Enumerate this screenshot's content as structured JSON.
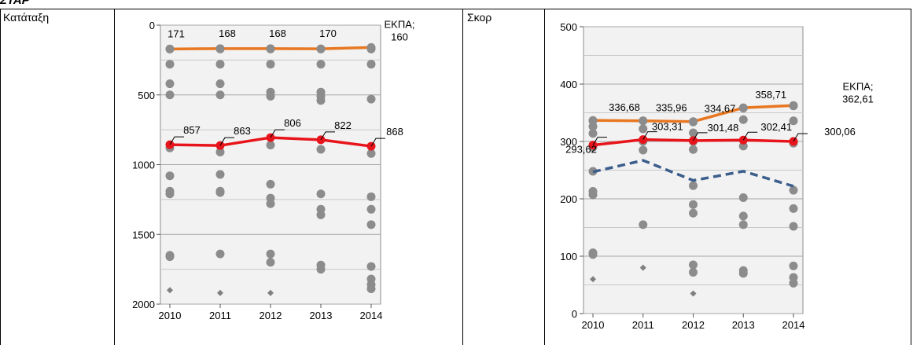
{
  "header": {
    "label": "ΣΤΑΡ"
  },
  "charts": [
    {
      "row_label": "Κατάταξη"
    },
    {
      "row_label": "Σκορ"
    }
  ],
  "chart_data": [
    {
      "type": "line",
      "x": [
        2010,
        2011,
        2012,
        2013,
        2014
      ],
      "y_reversed": true,
      "ylim": [
        2000,
        0
      ],
      "yticks": [
        0,
        500,
        1000,
        1500,
        2000
      ],
      "grid": true,
      "series": [
        {
          "values": [
            171,
            168,
            168,
            170,
            160
          ],
          "color": "#e87722",
          "labels": [
            "171",
            "168",
            "168",
            "170",
            "ΕΚΠΑ; 160"
          ],
          "dashed": false
        },
        {
          "values": [
            857,
            863,
            806,
            822,
            868
          ],
          "color": "#e8141b",
          "labels": [
            "857",
            "863",
            "806",
            "822",
            "868"
          ],
          "dashed": false
        }
      ],
      "gray_points": [
        [
          171,
          280,
          420,
          500,
          880,
          1080,
          1190,
          1210,
          1650,
          1660
        ],
        [
          171,
          280,
          420,
          500,
          910,
          1070,
          1190,
          1200,
          1640
        ],
        [
          171,
          280,
          480,
          510,
          860,
          1140,
          1240,
          1280,
          1640,
          1700
        ],
        [
          171,
          280,
          480,
          510,
          540,
          890,
          1210,
          1320,
          1360,
          1720,
          1750
        ],
        [
          171,
          280,
          530,
          920,
          1230,
          1320,
          1430,
          1730,
          1820,
          1860,
          1890
        ]
      ],
      "diamond_points": [
        1900,
        1920,
        1920,
        null,
        null
      ]
    },
    {
      "type": "line",
      "x": [
        2010,
        2011,
        2012,
        2013,
        2014
      ],
      "ylim": [
        0,
        500
      ],
      "yticks": [
        0,
        100,
        200,
        300,
        400,
        500
      ],
      "grid": true,
      "series": [
        {
          "values": [
            336.68,
            335.96,
            334.67,
            358.71,
            362.61
          ],
          "color": "#e87722",
          "labels": [
            "336,68",
            "335,96",
            "334,67",
            "358,71",
            "ΕΚΠΑ; 362,61"
          ],
          "dashed": false
        },
        {
          "values": [
            293.62,
            303.31,
            301.48,
            302.41,
            300.06
          ],
          "color": "#e8141b",
          "labels": [
            "293,62",
            "303,31",
            "301,48",
            "302,41",
            "300,06"
          ],
          "dashed": false
        },
        {
          "values": [
            247,
            267,
            232,
            248,
            222
          ],
          "color": "#3b5e8c",
          "labels": [],
          "dashed": true
        }
      ],
      "gray_points": [
        [
          336,
          326,
          314,
          290,
          248,
          213,
          207,
          106,
          103
        ],
        [
          336,
          322,
          300,
          285,
          155
        ],
        [
          334,
          315,
          300,
          286,
          223,
          190,
          175,
          85,
          72
        ],
        [
          358,
          338,
          292,
          202,
          170,
          155,
          75,
          70
        ],
        [
          362,
          336,
          300,
          297,
          215,
          183,
          152,
          83,
          63,
          53
        ]
      ],
      "diamond_points": [
        60,
        80,
        35,
        null,
        null
      ]
    }
  ]
}
